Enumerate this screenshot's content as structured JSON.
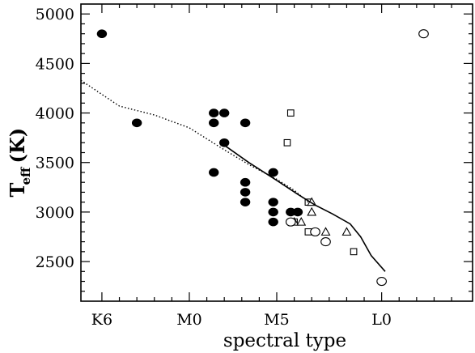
{
  "chart_data": {
    "type": "scatter",
    "title": "",
    "xlabel": "spectral type",
    "ylabel": {
      "main": "T",
      "sub": "eff",
      "unit": "(K)"
    },
    "xlim": [
      -0.6,
      10.6
    ],
    "ylim": [
      2100,
      5100
    ],
    "x_ticks": [
      {
        "value": 0,
        "label": "K6"
      },
      {
        "value": 2.5,
        "label": "M0"
      },
      {
        "value": 5,
        "label": "M5"
      },
      {
        "value": 8,
        "label": "L0"
      }
    ],
    "y_ticks": [
      {
        "value": 2500,
        "label": "2500"
      },
      {
        "value": 3000,
        "label": "3000"
      },
      {
        "value": 3500,
        "label": "3500"
      },
      {
        "value": 4000,
        "label": "4000"
      },
      {
        "value": 4500,
        "label": "4500"
      },
      {
        "value": 5000,
        "label": "5000"
      }
    ],
    "grid": false,
    "series": [
      {
        "marker": "filled-circle",
        "points": [
          [
            0,
            4800
          ],
          [
            1.0,
            3900
          ],
          [
            3.2,
            4000
          ],
          [
            3.2,
            3900
          ],
          [
            3.2,
            3400
          ],
          [
            3.5,
            4000
          ],
          [
            3.5,
            3700
          ],
          [
            4.1,
            3900
          ],
          [
            4.1,
            3300
          ],
          [
            4.1,
            3200
          ],
          [
            4.1,
            3100
          ],
          [
            4.9,
            3400
          ],
          [
            4.9,
            3100
          ],
          [
            4.9,
            3000
          ],
          [
            4.9,
            2900
          ],
          [
            5.4,
            3000
          ],
          [
            5.4,
            2900
          ],
          [
            5.6,
            3000
          ]
        ]
      },
      {
        "marker": "open-square",
        "points": [
          [
            5.4,
            4000
          ],
          [
            5.3,
            3700
          ],
          [
            5.9,
            3100
          ],
          [
            5.9,
            2800
          ],
          [
            7.2,
            2600
          ],
          [
            5.5,
            2900
          ]
        ]
      },
      {
        "marker": "open-triangle",
        "points": [
          [
            6.0,
            3100
          ],
          [
            6.0,
            3000
          ],
          [
            5.5,
            2900
          ],
          [
            5.7,
            2900
          ],
          [
            6.4,
            2800
          ],
          [
            7.0,
            2800
          ]
        ]
      },
      {
        "marker": "open-circle",
        "points": [
          [
            5.4,
            2900
          ],
          [
            6.1,
            2800
          ],
          [
            6.4,
            2700
          ],
          [
            8.0,
            2300
          ],
          [
            9.2,
            4800
          ]
        ]
      },
      {
        "line": "dotted",
        "points": [
          [
            -0.6,
            4330
          ],
          [
            0.5,
            4070
          ],
          [
            1.5,
            3980
          ],
          [
            2.5,
            3850
          ],
          [
            3.4,
            3650
          ],
          [
            4.2,
            3480
          ],
          [
            5.0,
            3330
          ],
          [
            5.5,
            3220
          ],
          [
            5.9,
            3100
          ]
        ]
      },
      {
        "line": "solid",
        "points": [
          [
            3.4,
            3700
          ],
          [
            4.2,
            3500
          ],
          [
            5.0,
            3320
          ],
          [
            5.6,
            3180
          ],
          [
            6.1,
            3070
          ],
          [
            6.6,
            2980
          ],
          [
            7.1,
            2880
          ],
          [
            7.4,
            2750
          ],
          [
            7.7,
            2560
          ],
          [
            8.1,
            2400
          ]
        ]
      }
    ]
  }
}
